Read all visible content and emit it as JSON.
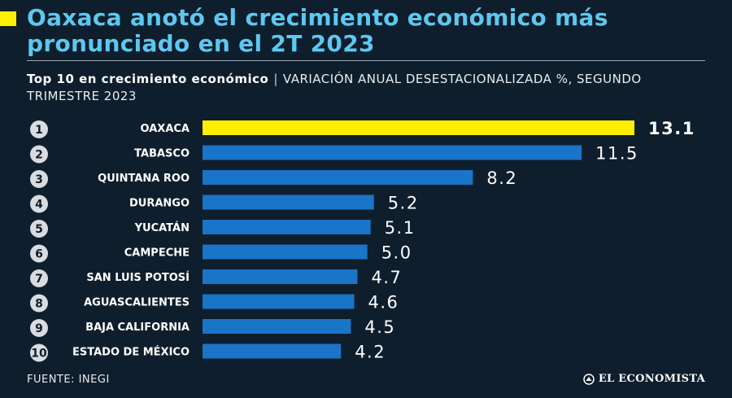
{
  "headline": "Oaxaca anotó el crecimiento económico más pronunciado en el 2T 2023",
  "subtitle": {
    "strong": "Top 10 en crecimiento económico",
    "separator": "|",
    "rest": "VARIACIÓN ANUAL DESESTACIONALIZADA %, SEGUNDO TRIMESTRE 2023"
  },
  "source": "FUENTE: INEGI",
  "brand": "EL ECONOMISTA",
  "colors": {
    "background": "#0f1e2c",
    "headline": "#5cc8f0",
    "highlight": "#ffee00",
    "bar": "#1a74c8",
    "rank_badge": "#d8dce0"
  },
  "chart_data": {
    "type": "bar",
    "orientation": "horizontal",
    "title": "Top 10 en crecimiento económico",
    "subtitle": "VARIACIÓN ANUAL DESESTACIONALIZADA %, SEGUNDO TRIMESTRE 2023",
    "xlabel": "",
    "ylabel": "",
    "xlim": [
      0,
      13.1
    ],
    "grid": false,
    "ranks": [
      "1",
      "2",
      "3",
      "4",
      "5",
      "6",
      "7",
      "8",
      "9",
      "10"
    ],
    "categories": [
      "OAXACA",
      "TABASCO",
      "QUINTANA ROO",
      "DURANGO",
      "YUCATÁN",
      "CAMPECHE",
      "SAN LUIS POTOSÍ",
      "AGUASCALIENTES",
      "BAJA CALIFORNIA",
      "ESTADO DE MÉXICO"
    ],
    "values": [
      13.1,
      11.5,
      8.2,
      5.2,
      5.1,
      5.0,
      4.7,
      4.6,
      4.5,
      4.2
    ],
    "value_labels": [
      "13.1",
      "11.5",
      "8.2",
      "5.2",
      "5.1",
      "5.0",
      "4.7",
      "4.6",
      "4.5",
      "4.2"
    ],
    "highlight_index": 0
  }
}
